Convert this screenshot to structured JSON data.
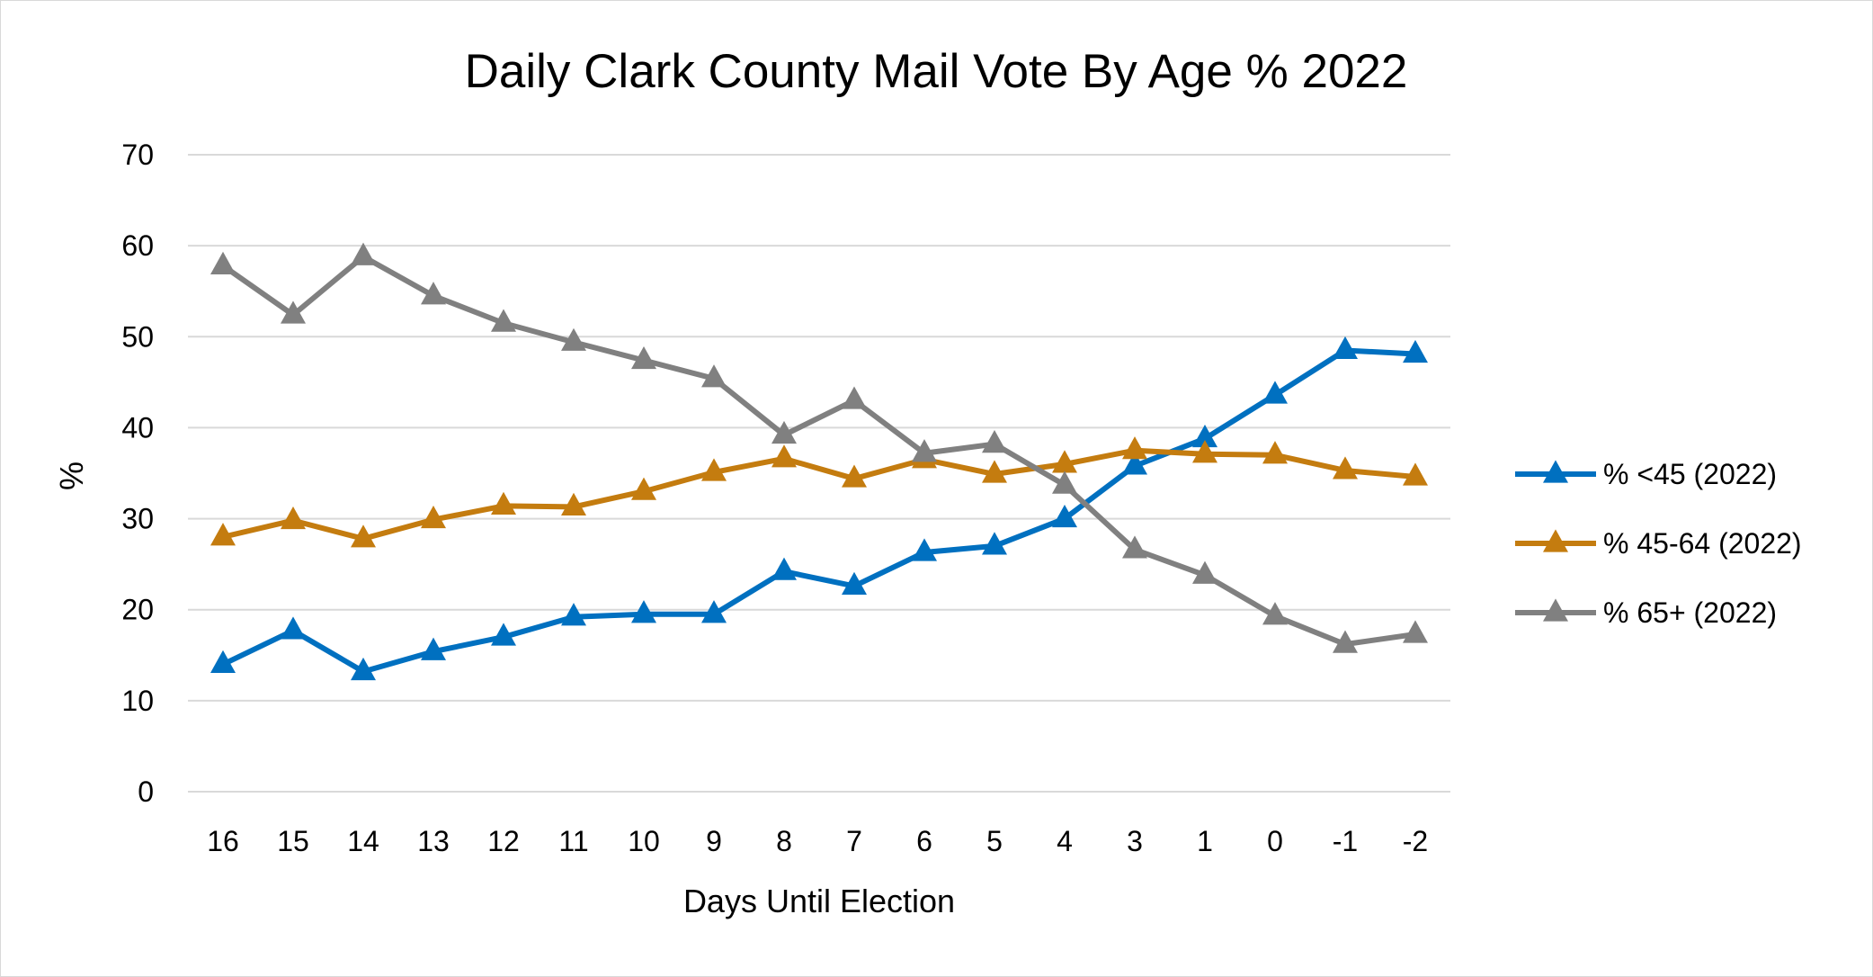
{
  "chart_data": {
    "type": "line",
    "title": "Daily Clark County Mail Vote By Age % 2022",
    "xlabel": "Days Until Election",
    "ylabel": "%",
    "categories": [
      "16",
      "15",
      "14",
      "13",
      "12",
      "11",
      "10",
      "9",
      "8",
      "7",
      "6",
      "5",
      "4",
      "3",
      "1",
      "0",
      "-1",
      "-2"
    ],
    "ylim": [
      0,
      70
    ],
    "yticks": [
      0,
      10,
      20,
      30,
      40,
      50,
      60,
      70
    ],
    "grid": true,
    "legend_position": "right",
    "series": [
      {
        "name": "% <45 (2022)",
        "color": "#0070c0",
        "marker": "triangle",
        "values": [
          14.0,
          17.7,
          13.2,
          15.4,
          17.0,
          19.2,
          19.5,
          19.5,
          24.2,
          22.6,
          26.3,
          27.0,
          30.0,
          35.8,
          38.8,
          43.6,
          48.5,
          48.1
        ]
      },
      {
        "name": "% 45-64 (2022)",
        "color": "#c47c0f",
        "marker": "triangle",
        "values": [
          28.0,
          29.8,
          27.8,
          29.9,
          31.4,
          31.3,
          33.0,
          35.1,
          36.6,
          34.4,
          36.5,
          34.9,
          36.0,
          37.5,
          37.1,
          37.0,
          35.3,
          34.6
        ]
      },
      {
        "name": "% 65+ (2022)",
        "color": "#808080",
        "marker": "triangle",
        "values": [
          57.8,
          52.4,
          58.8,
          54.5,
          51.5,
          49.4,
          47.4,
          45.4,
          39.2,
          43.0,
          37.2,
          38.2,
          33.7,
          26.6,
          23.8,
          19.3,
          16.2,
          17.3
        ]
      }
    ]
  }
}
